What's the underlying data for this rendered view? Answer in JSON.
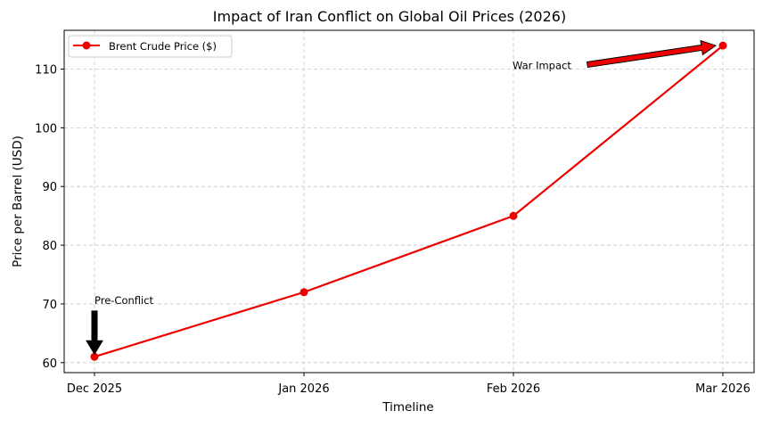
{
  "chart_data": {
    "type": "line",
    "title": "Impact of Iran Conflict on Global Oil Prices (2026)",
    "xlabel": "Timeline",
    "ylabel": "Price per Barrel (USD)",
    "categories": [
      "Dec 2025",
      "Jan 2026",
      "Feb 2026",
      "Mar 2026"
    ],
    "series": [
      {
        "name": "Brent Crude Price ($)",
        "values": [
          61,
          72,
          85,
          114
        ],
        "color": "#ee0000"
      }
    ],
    "yticks": [
      60,
      70,
      80,
      90,
      100,
      110
    ],
    "ylim": [
      58.3,
      116.6
    ],
    "grid": true,
    "legend": "top-left",
    "annotations": [
      {
        "text": "Pre-Conflict",
        "target_category": "Dec 2025",
        "target_value": 61,
        "text_value": 70,
        "arrow_color": "#000000"
      },
      {
        "text": "War Impact",
        "target_category": "Mar 2026",
        "target_value": 114,
        "text_category_offset": 2.0,
        "text_value": 110,
        "arrow_color": "#ee0000"
      }
    ]
  }
}
